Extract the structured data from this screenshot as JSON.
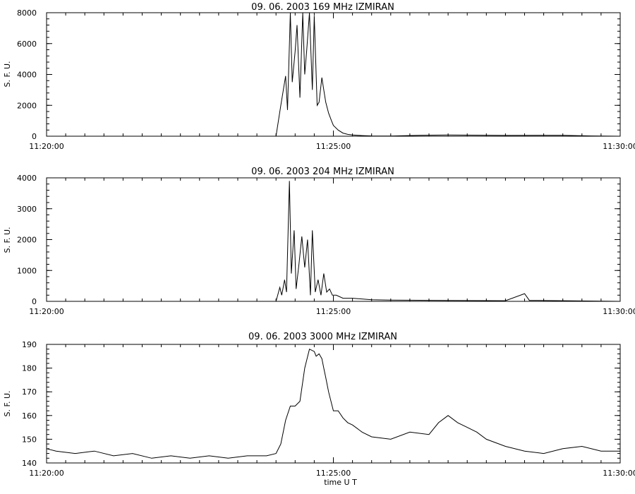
{
  "chart_data": [
    {
      "type": "line",
      "title": "09. 06. 2003   169 MHz   IZMIRAN",
      "ylabel": "S. F. U.",
      "xlabel": "",
      "xlim": [
        "11:20:00",
        "11:30:00"
      ],
      "ylim": [
        0,
        8000
      ],
      "x_ticks": [
        "11:20:00",
        "11:25:00",
        "11:30:00"
      ],
      "y_ticks": [
        0,
        2000,
        4000,
        6000,
        8000
      ],
      "series": [
        {
          "x": [
            "11:20:00",
            "11:24:00",
            "11:24:05",
            "11:24:10",
            "11:24:12",
            "11:24:15",
            "11:24:17",
            "11:24:20",
            "11:24:22",
            "11:24:25",
            "11:24:28",
            "11:24:30",
            "11:24:32",
            "11:24:35",
            "11:24:38",
            "11:24:40",
            "11:24:43",
            "11:24:45",
            "11:24:48",
            "11:24:50",
            "11:24:52",
            "11:24:55",
            "11:24:58",
            "11:25:00",
            "11:25:05",
            "11:25:10",
            "11:25:15",
            "11:25:20",
            "11:25:30",
            "11:25:40",
            "11:26:00",
            "11:26:30",
            "11:27:00",
            "11:28:00",
            "11:29:00",
            "11:29:30",
            "11:30:00"
          ],
          "y": [
            0,
            0,
            2000,
            3900,
            1700,
            8000,
            3500,
            5500,
            7200,
            2500,
            8000,
            4000,
            5500,
            8000,
            3000,
            7800,
            2000,
            2200,
            3800,
            3000,
            2200,
            1500,
            1000,
            700,
            400,
            200,
            120,
            80,
            40,
            20,
            10,
            60,
            80,
            50,
            60,
            20,
            0
          ]
        }
      ]
    },
    {
      "type": "line",
      "title": "09. 06. 2003   204 MHz   IZMIRAN",
      "ylabel": "S. F. U.",
      "xlabel": "",
      "xlim": [
        "11:20:00",
        "11:30:00"
      ],
      "ylim": [
        0,
        4000
      ],
      "x_ticks": [
        "11:20:00",
        "11:25:00",
        "11:30:00"
      ],
      "y_ticks": [
        0,
        1000,
        2000,
        3000,
        4000
      ],
      "series": [
        {
          "x": [
            "11:20:00",
            "11:22:00",
            "11:24:00",
            "11:24:04",
            "11:24:06",
            "11:24:09",
            "11:24:11",
            "11:24:14",
            "11:24:16",
            "11:24:19",
            "11:24:21",
            "11:24:24",
            "11:24:27",
            "11:24:30",
            "11:24:33",
            "11:24:36",
            "11:24:38",
            "11:24:41",
            "11:24:44",
            "11:24:47",
            "11:24:50",
            "11:24:53",
            "11:24:56",
            "11:24:59",
            "11:25:03",
            "11:25:10",
            "11:25:20",
            "11:25:40",
            "11:26:00",
            "11:27:00",
            "11:28:00",
            "11:28:20",
            "11:28:25",
            "11:29:00",
            "11:30:00"
          ],
          "y": [
            0,
            0,
            0,
            450,
            200,
            700,
            300,
            3900,
            900,
            2300,
            400,
            1200,
            2100,
            1100,
            2000,
            200,
            2300,
            300,
            700,
            200,
            900,
            300,
            400,
            200,
            200,
            100,
            100,
            50,
            40,
            30,
            20,
            250,
            30,
            20,
            0
          ]
        }
      ]
    },
    {
      "type": "line",
      "title": "09. 06. 2003    3000 MHz   IZMIRAN",
      "ylabel": "S. F. U.",
      "xlabel": "time  U T",
      "xlim": [
        "11:20:00",
        "11:30:00"
      ],
      "ylim": [
        140,
        190
      ],
      "x_ticks": [
        "11:20:00",
        "11:25:00",
        "11:30:00"
      ],
      "y_ticks": [
        140,
        150,
        160,
        170,
        180,
        190
      ],
      "series": [
        {
          "x": [
            "11:20:00",
            "11:20:10",
            "11:20:30",
            "11:20:50",
            "11:21:10",
            "11:21:30",
            "11:21:50",
            "11:22:10",
            "11:22:30",
            "11:22:50",
            "11:23:10",
            "11:23:30",
            "11:23:50",
            "11:24:00",
            "11:24:05",
            "11:24:10",
            "11:24:15",
            "11:24:20",
            "11:24:25",
            "11:24:30",
            "11:24:35",
            "11:24:40",
            "11:24:42",
            "11:24:45",
            "11:24:48",
            "11:24:50",
            "11:24:52",
            "11:24:55",
            "11:25:00",
            "11:25:05",
            "11:25:10",
            "11:25:15",
            "11:25:20",
            "11:25:30",
            "11:25:40",
            "11:26:00",
            "11:26:20",
            "11:26:40",
            "11:26:50",
            "11:27:00",
            "11:27:10",
            "11:27:20",
            "11:27:30",
            "11:27:40",
            "11:28:00",
            "11:28:20",
            "11:28:40",
            "11:29:00",
            "11:29:20",
            "11:29:40",
            "11:30:00"
          ],
          "y": [
            146,
            145,
            144,
            145,
            143,
            144,
            142,
            143,
            142,
            143,
            142,
            143,
            143,
            144,
            148,
            158,
            164,
            164,
            166,
            180,
            188,
            187,
            185,
            186,
            184,
            180,
            176,
            170,
            162,
            162,
            159,
            157,
            156,
            153,
            151,
            150,
            153,
            152,
            157,
            160,
            157,
            155,
            153,
            150,
            147,
            145,
            144,
            146,
            147,
            145,
            145
          ]
        }
      ]
    }
  ]
}
